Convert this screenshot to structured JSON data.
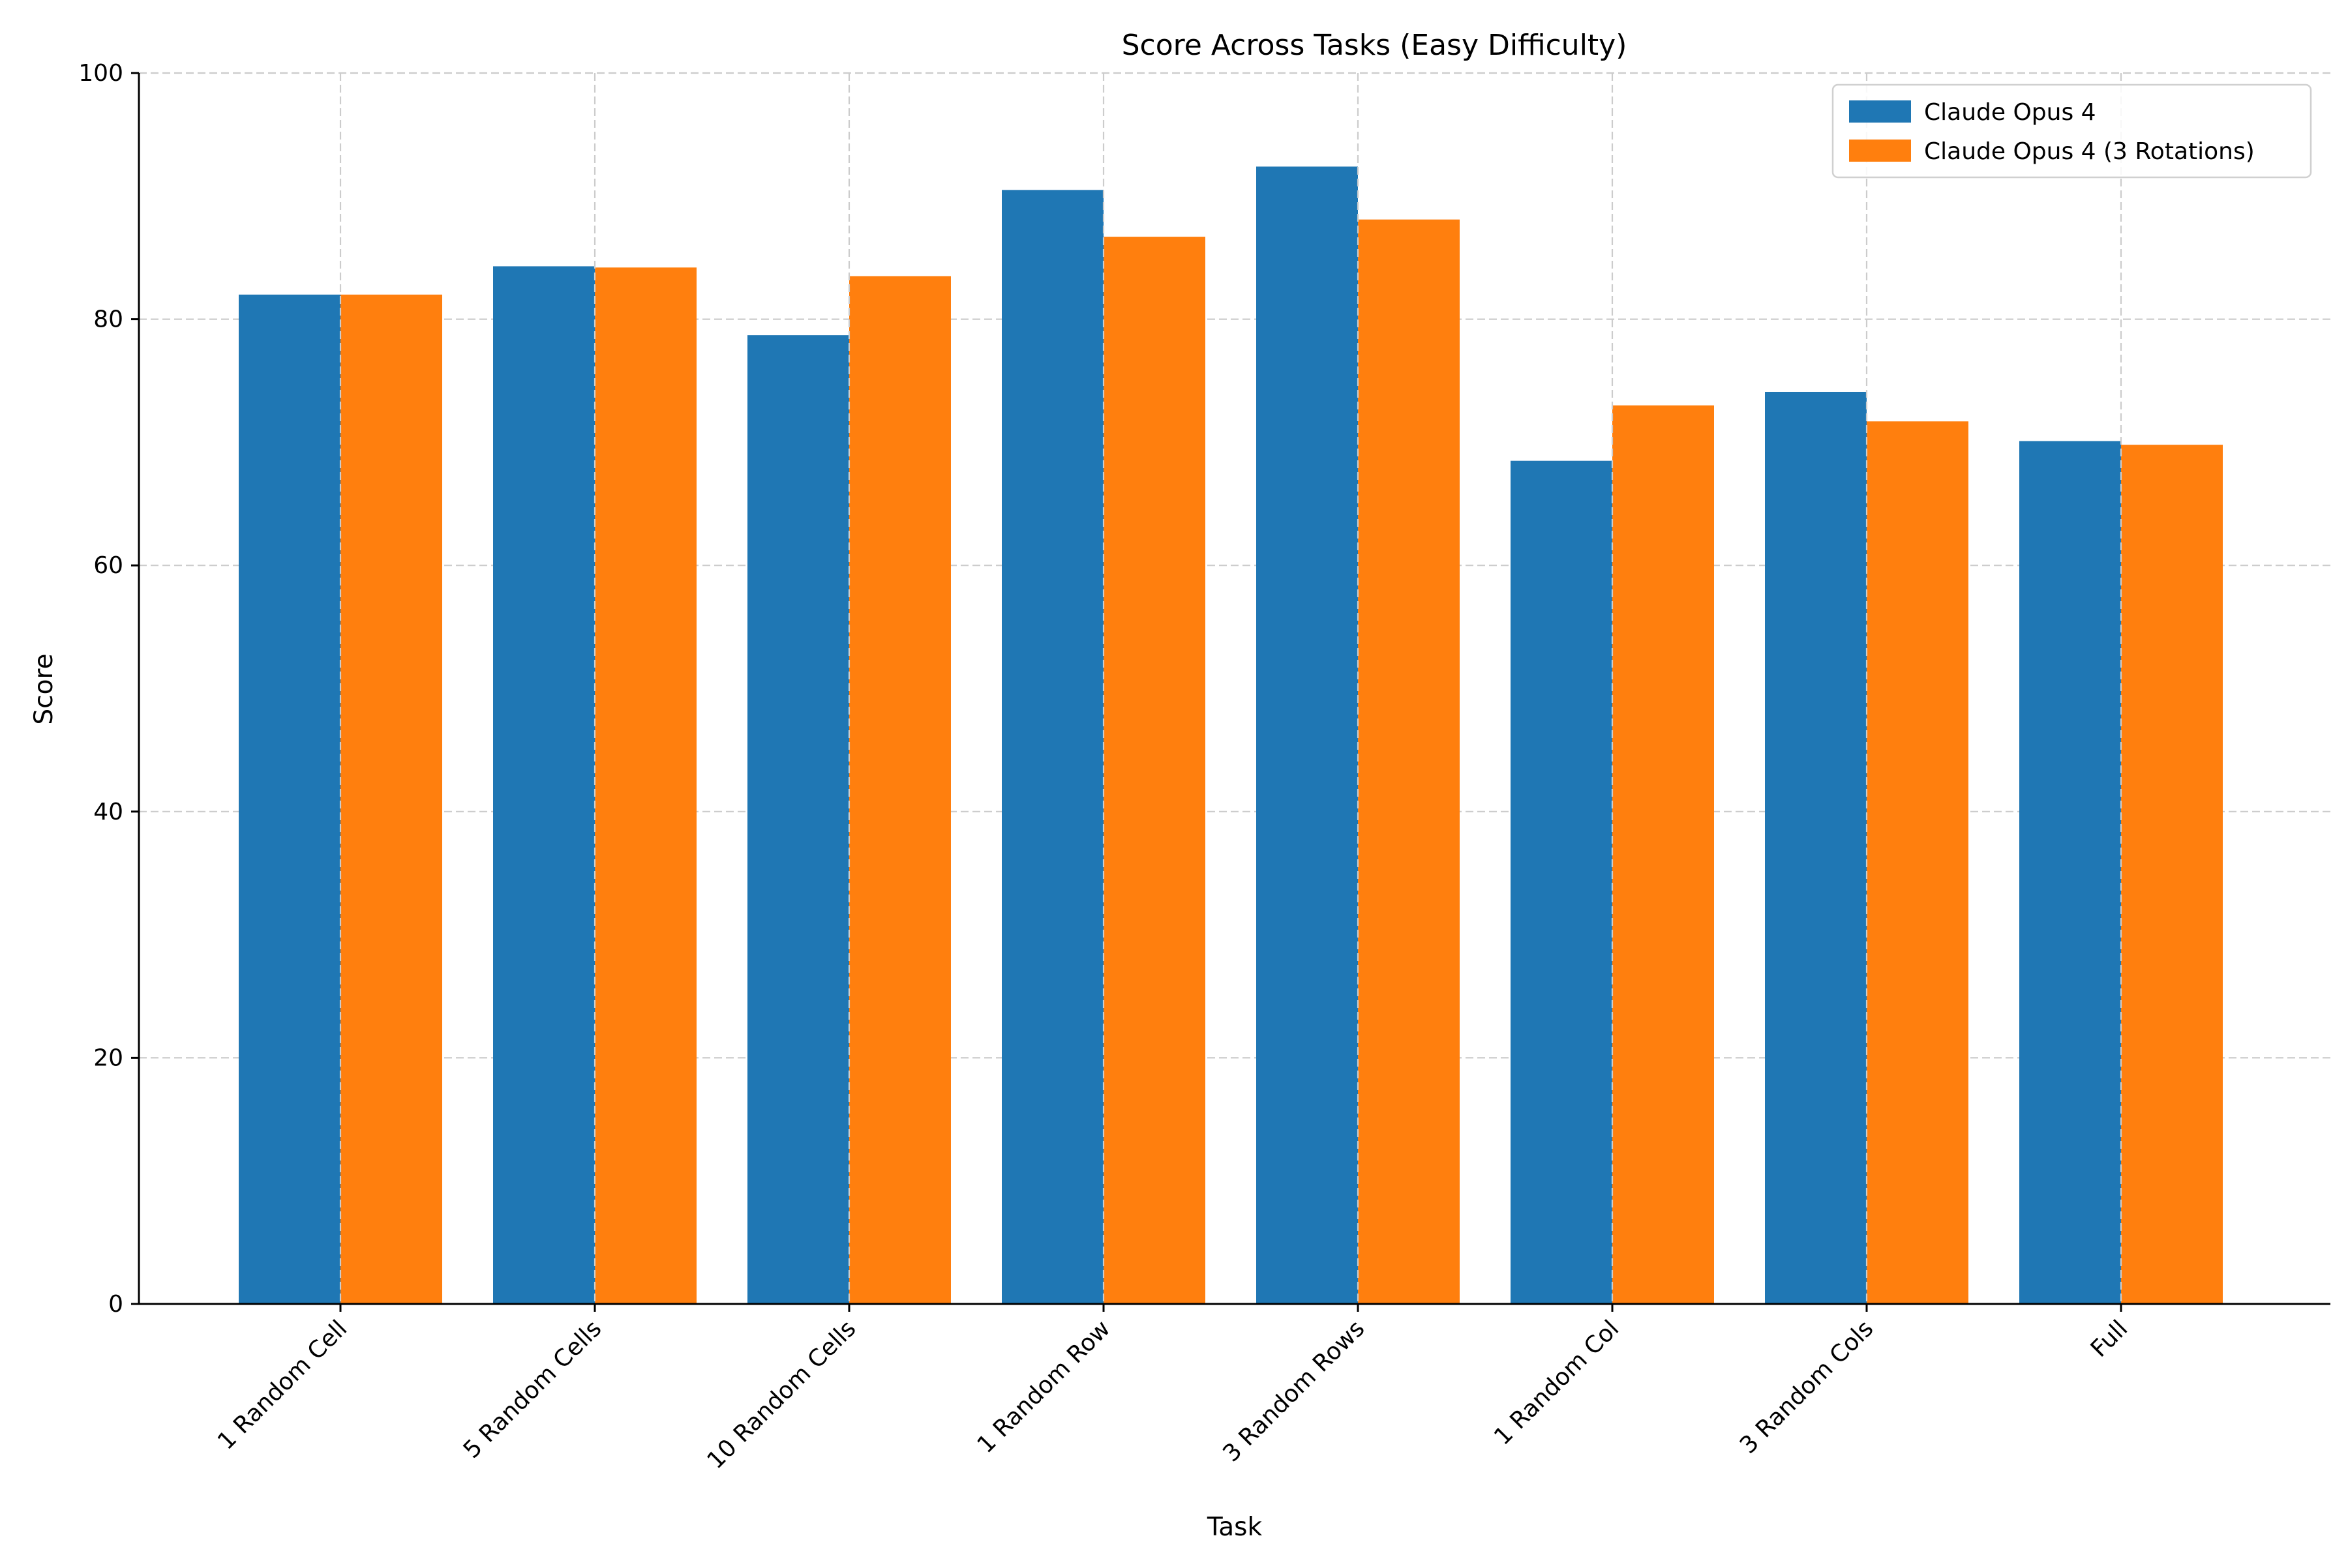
{
  "chart_data": {
    "type": "bar",
    "title": "Score Across Tasks (Easy Difficulty)",
    "xlabel": "Task",
    "ylabel": "Score",
    "ylim": [
      0,
      100
    ],
    "yticks": [
      0,
      20,
      40,
      60,
      80,
      100
    ],
    "grid": true,
    "legend_position": "top-right",
    "categories": [
      "1 Random Cell",
      "5 Random Cells",
      "10 Random Cells",
      "1 Random Row",
      "3 Random Rows",
      "1 Random Col",
      "3 Random Cols",
      "Full"
    ],
    "series": [
      {
        "name": "Claude Opus 4",
        "color": "#1f77b4",
        "values": [
          82.0,
          84.3,
          78.7,
          90.5,
          92.4,
          68.5,
          74.1,
          70.1
        ]
      },
      {
        "name": "Claude Opus 4 (3 Rotations)",
        "color": "#ff7f0e",
        "values": [
          82.0,
          84.2,
          83.5,
          86.7,
          88.1,
          73.0,
          71.7,
          69.8
        ]
      }
    ]
  }
}
